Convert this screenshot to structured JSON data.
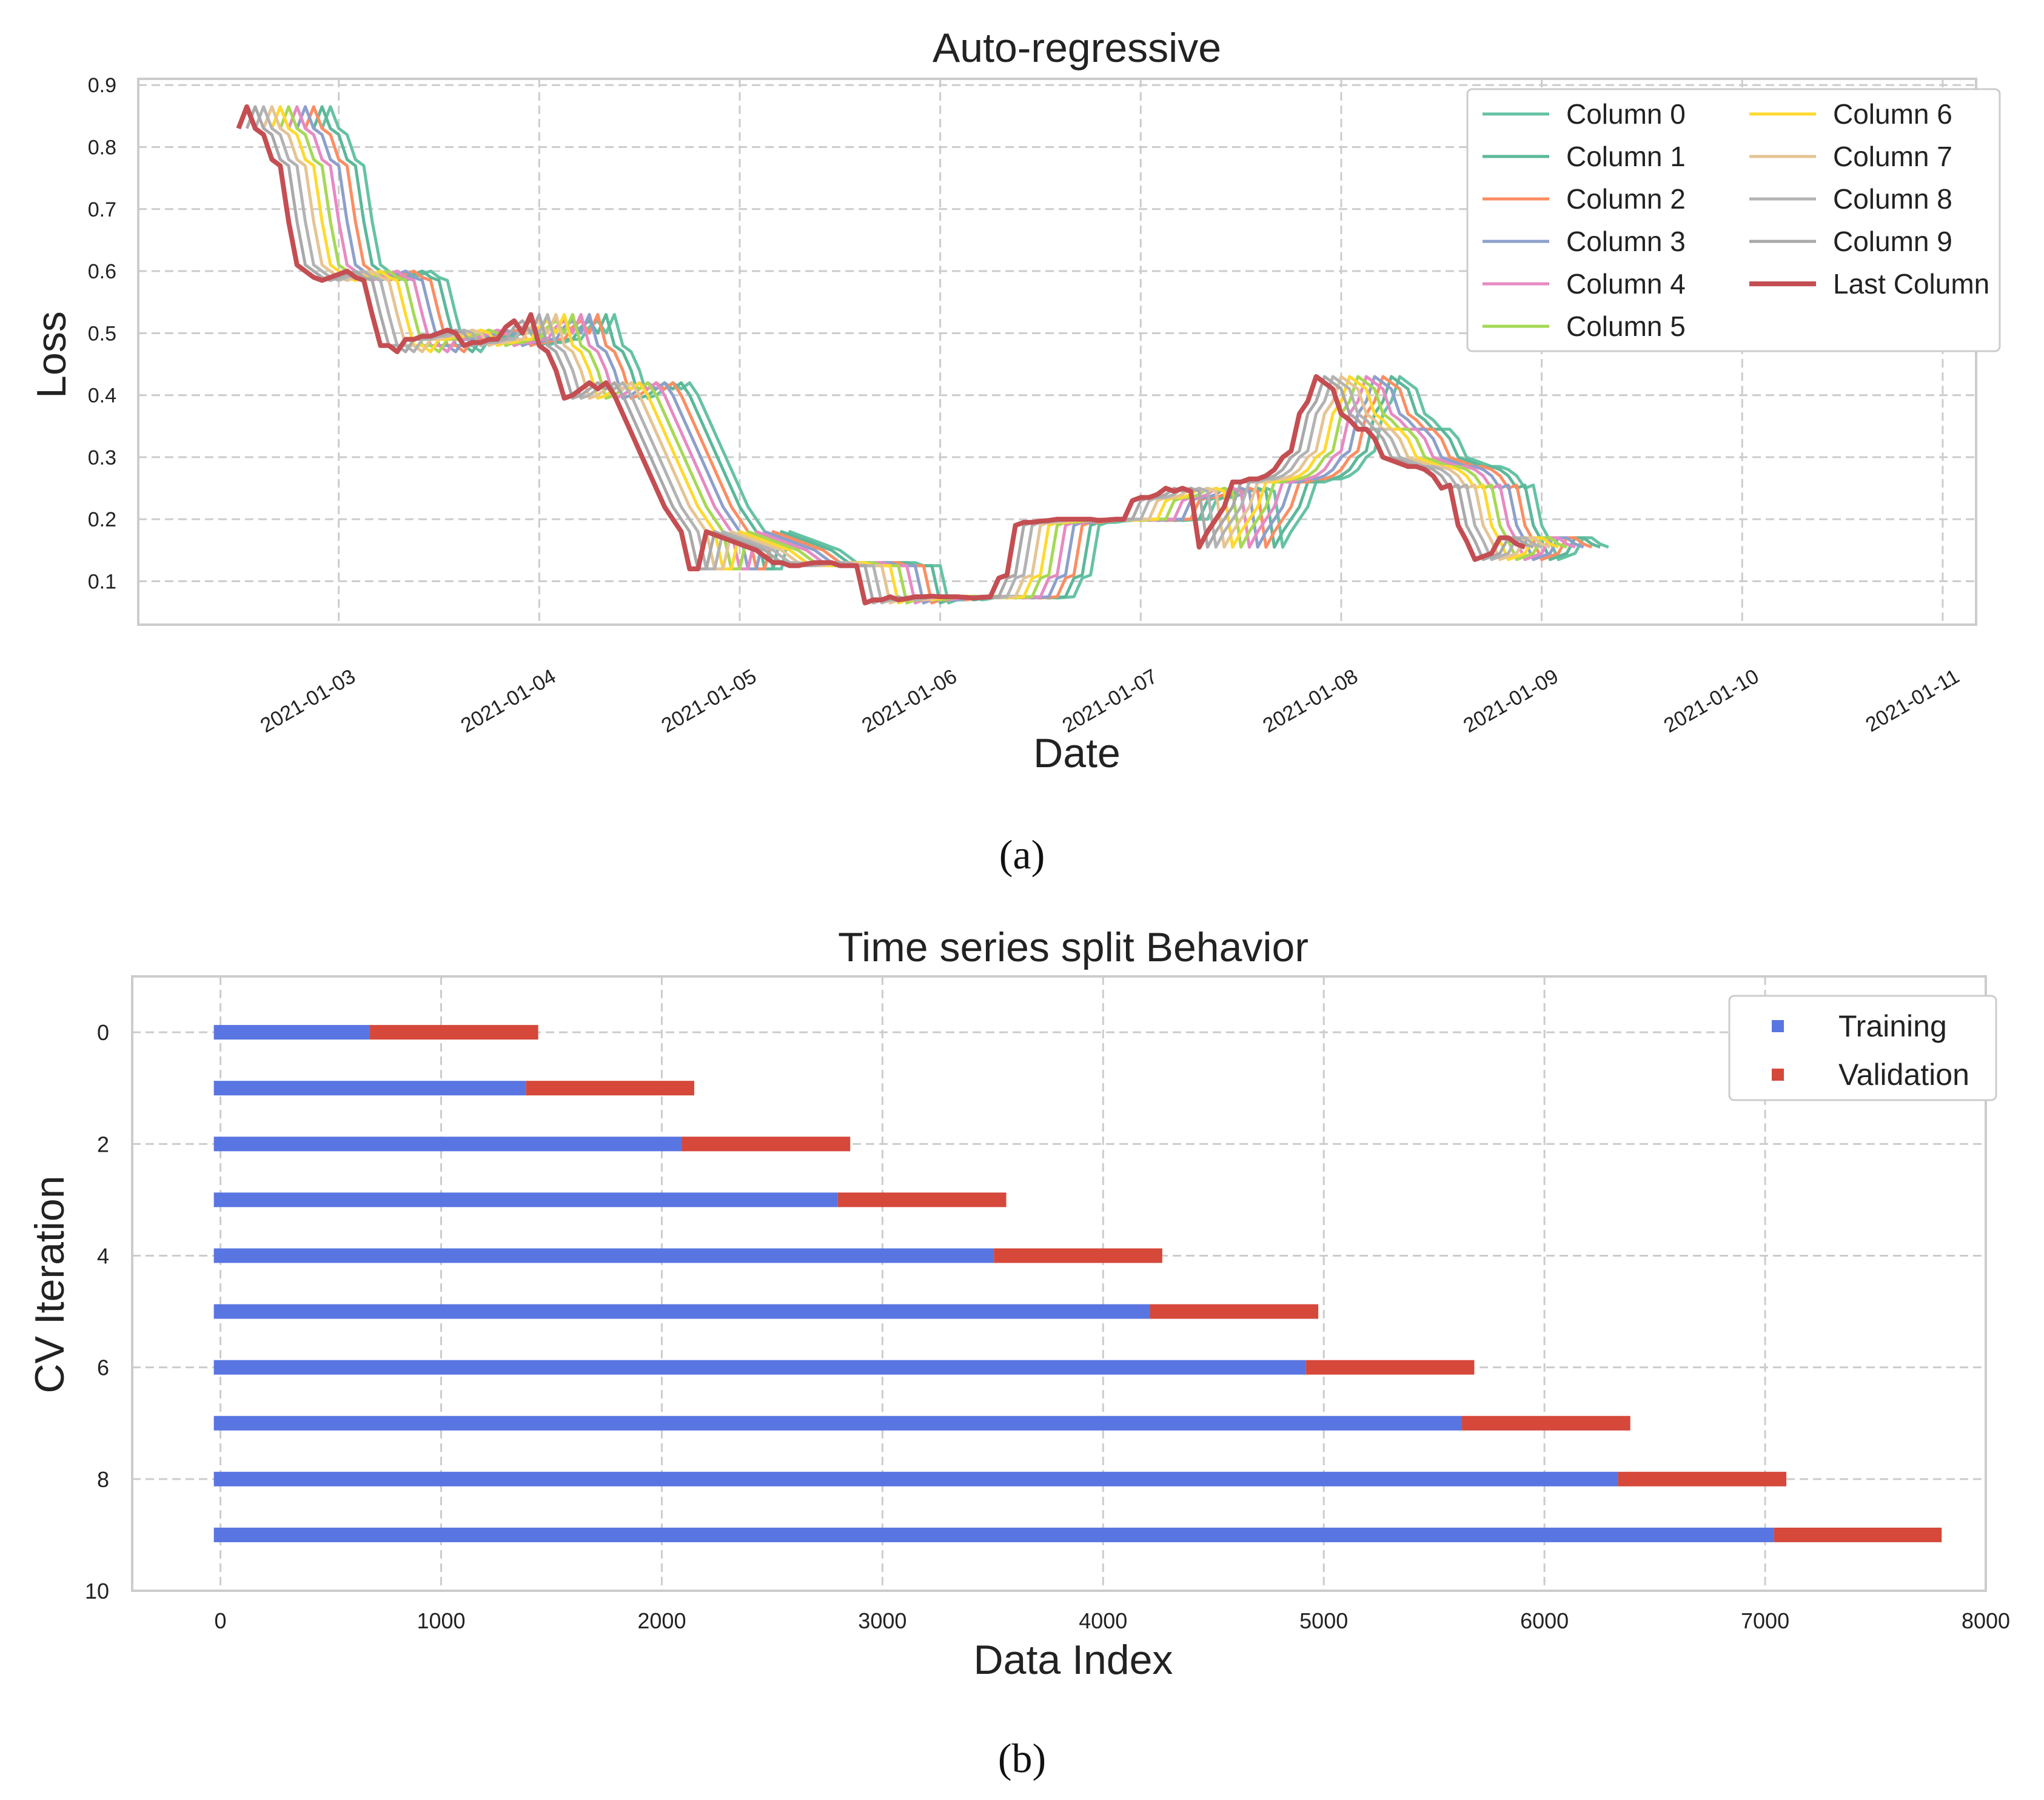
{
  "captions": {
    "a": "(a)",
    "b": "(b)"
  },
  "chart_data": [
    {
      "type": "line",
      "title": "Auto-regressive",
      "xlabel": "Date",
      "ylabel": "Loss",
      "xlim": [
        "2021-01-02",
        "2021-01-11T04:00"
      ],
      "ylim": [
        0.03,
        0.91
      ],
      "grid": true,
      "legend_position": "top-right",
      "legend_columns": 2,
      "x_ticks": [
        "2021-01-03",
        "2021-01-04",
        "2021-01-05",
        "2021-01-06",
        "2021-01-07",
        "2021-01-08",
        "2021-01-09",
        "2021-01-10",
        "2021-01-11"
      ],
      "y_ticks": [
        0.1,
        0.2,
        0.3,
        0.4,
        0.5,
        0.6,
        0.7,
        0.8,
        0.9
      ],
      "x_start": "2021-01-02T12:00",
      "x_step_hours": 1,
      "last_series": {
        "name": "Last Column",
        "color": "#c44e52",
        "values": [
          0.83,
          0.865,
          0.83,
          0.82,
          0.78,
          0.77,
          0.68,
          0.61,
          0.6,
          0.59,
          0.585,
          0.59,
          0.595,
          0.6,
          0.59,
          0.585,
          0.53,
          0.48,
          0.48,
          0.47,
          0.49,
          0.49,
          0.495,
          0.495,
          0.5,
          0.505,
          0.5,
          0.48,
          0.485,
          0.485,
          0.49,
          0.49,
          0.51,
          0.52,
          0.5,
          0.53,
          0.48,
          0.47,
          0.44,
          0.395,
          0.4,
          0.41,
          0.42,
          0.41,
          0.42,
          0.4,
          0.37,
          0.34,
          0.31,
          0.28,
          0.25,
          0.22,
          0.2,
          0.18,
          0.12,
          0.12,
          0.18,
          0.175,
          0.17,
          0.165,
          0.16,
          0.155,
          0.15,
          0.14,
          0.13,
          0.13,
          0.125,
          0.125,
          0.128,
          0.13,
          0.13,
          0.13,
          0.125,
          0.125,
          0.125,
          0.065,
          0.07,
          0.07,
          0.075,
          0.07,
          0.072,
          0.075,
          0.075,
          0.076,
          0.075,
          0.075,
          0.075,
          0.074,
          0.073,
          0.074,
          0.075,
          0.105,
          0.11,
          0.19,
          0.195,
          0.195,
          0.197,
          0.198,
          0.2,
          0.2,
          0.2,
          0.2,
          0.2,
          0.198,
          0.199,
          0.2,
          0.2,
          0.23,
          0.235,
          0.235,
          0.24,
          0.25,
          0.245,
          0.25,
          0.245,
          0.155,
          0.18,
          0.2,
          0.22,
          0.26,
          0.26,
          0.265,
          0.265,
          0.27,
          0.28,
          0.3,
          0.31,
          0.37,
          0.39,
          0.43,
          0.42,
          0.41,
          0.37,
          0.36,
          0.345,
          0.345,
          0.33,
          0.3,
          0.295,
          0.29,
          0.285,
          0.285,
          0.28,
          0.27,
          0.25,
          0.255,
          0.19,
          0.165,
          0.135,
          0.14,
          0.145,
          0.17,
          0.17,
          0.16,
          0.155
        ]
      },
      "lag_series": [
        {
          "name": "Column 0",
          "lag_hours": 10,
          "color": "#66c2a5"
        },
        {
          "name": "Column 1",
          "lag_hours": 9,
          "color": "#5bb89a"
        },
        {
          "name": "Column 2",
          "lag_hours": 8,
          "color": "#fc8d62"
        },
        {
          "name": "Column 3",
          "lag_hours": 7,
          "color": "#8da0cb"
        },
        {
          "name": "Column 4",
          "lag_hours": 6,
          "color": "#e78ac3"
        },
        {
          "name": "Column 5",
          "lag_hours": 5,
          "color": "#a6d854"
        },
        {
          "name": "Column 6",
          "lag_hours": 4,
          "color": "#ffd92f"
        },
        {
          "name": "Column 7",
          "lag_hours": 3,
          "color": "#e5c494"
        },
        {
          "name": "Column 8",
          "lag_hours": 2,
          "color": "#b3b3b3"
        },
        {
          "name": "Column 9",
          "lag_hours": 1,
          "color": "#a9a9a9"
        }
      ]
    },
    {
      "type": "bar",
      "orientation": "horizontal",
      "stacked": true,
      "title": "Time series split Behavior",
      "xlabel": "Data Index",
      "ylabel": "CV Iteration",
      "xlim": [
        -400,
        8000
      ],
      "ylim": [
        10,
        -1
      ],
      "x_ticks": [
        0,
        1000,
        2000,
        3000,
        4000,
        5000,
        6000,
        7000,
        8000
      ],
      "y_ticks": [
        0,
        2,
        4,
        6,
        8,
        10
      ],
      "grid": true,
      "legend_position": "top-right",
      "categories": [
        0,
        1,
        2,
        3,
        4,
        5,
        6,
        7,
        8,
        9
      ],
      "series": [
        {
          "name": "Training",
          "color": "#5975e1",
          "start": [
            -30,
            -30,
            -30,
            -30,
            -30,
            -30,
            -30,
            -30,
            -30,
            -30
          ],
          "end": [
            677,
            1384,
            2091,
            2798,
            3505,
            4212,
            4919,
            5626,
            6333,
            7040
          ]
        },
        {
          "name": "Validation",
          "color": "#d5483a",
          "start": [
            677,
            1384,
            2091,
            2798,
            3505,
            4212,
            4919,
            5626,
            6333,
            7040
          ],
          "end": [
            1440,
            2147,
            2854,
            3561,
            4268,
            4975,
            5682,
            6389,
            7096,
            7800
          ]
        }
      ]
    }
  ]
}
